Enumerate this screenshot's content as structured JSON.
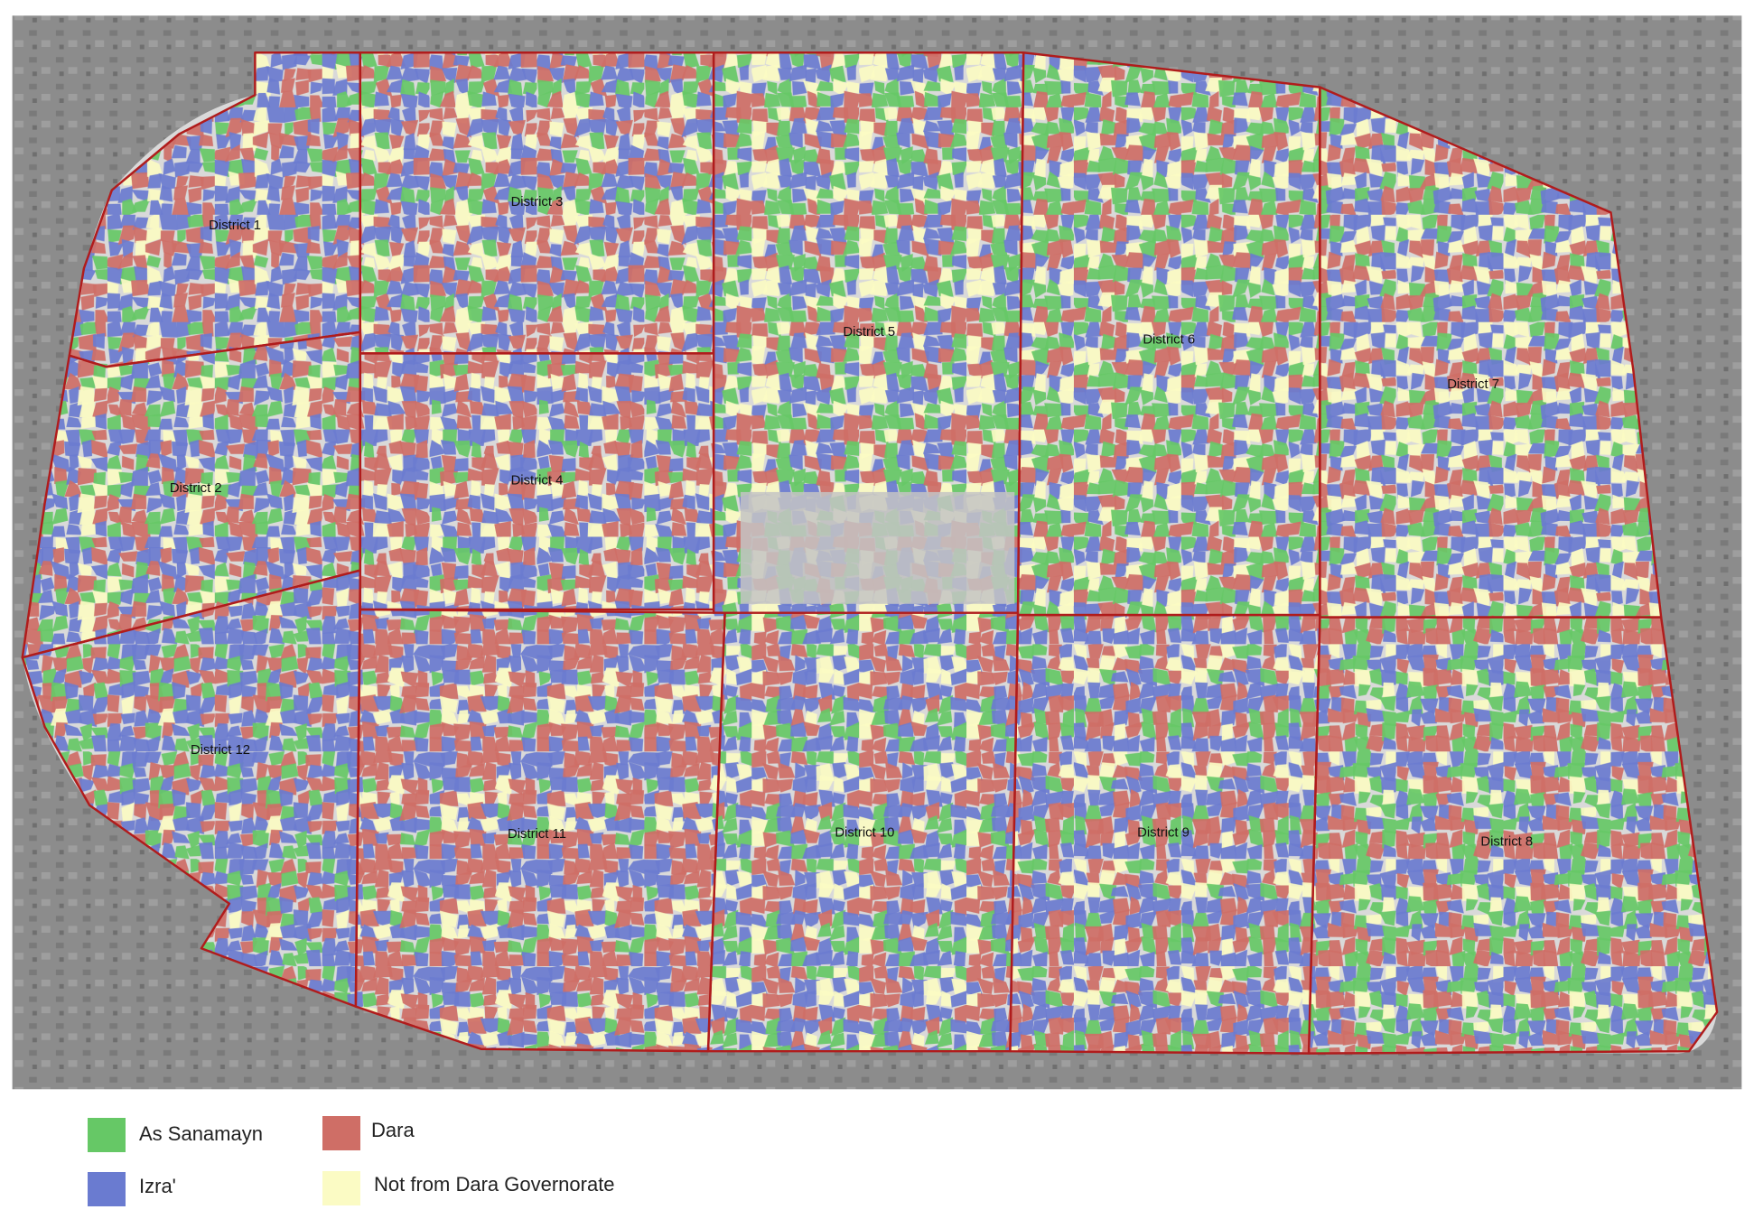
{
  "districts": [
    {
      "label": "District 1"
    },
    {
      "label": "District 2"
    },
    {
      "label": "District 3"
    },
    {
      "label": "District 4"
    },
    {
      "label": "District 5"
    },
    {
      "label": "District 6"
    },
    {
      "label": "District 7"
    },
    {
      "label": "District 8"
    },
    {
      "label": "District 9"
    },
    {
      "label": "District 10"
    },
    {
      "label": "District 11"
    },
    {
      "label": "District 12"
    }
  ],
  "legend": [
    {
      "label": "As Sanamayn",
      "color": "#66c866"
    },
    {
      "label": "Dara",
      "color": "#cf6e66"
    },
    {
      "label": "Izra'",
      "color": "#6a7bd0"
    },
    {
      "label": "Not from Dara Governorate",
      "color": "#fbfbc4"
    }
  ]
}
